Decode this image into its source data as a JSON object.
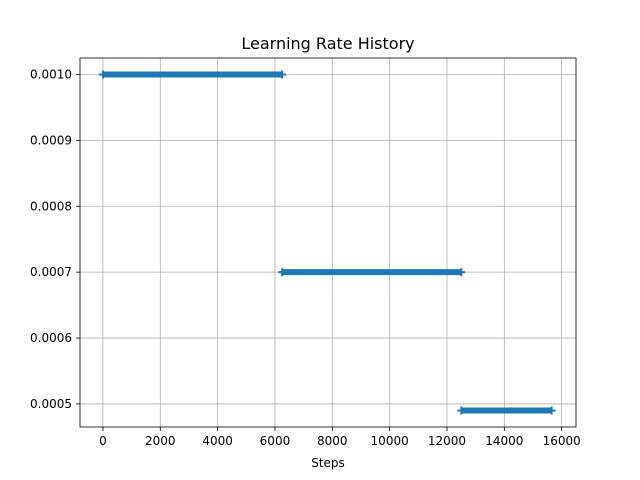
{
  "chart_data": {
    "type": "scatter",
    "title": "Learning Rate History",
    "xlabel": "Steps",
    "ylabel": "",
    "grid": true,
    "legend": "none",
    "color": "#1f77b4",
    "marker": "plus",
    "xlim": [
      -800,
      16500
    ],
    "ylim": [
      0.000465,
      0.001025
    ],
    "xticks": [
      0,
      2000,
      4000,
      6000,
      8000,
      10000,
      12000,
      14000,
      16000
    ],
    "xtick_labels": [
      "0",
      "2000",
      "4000",
      "6000",
      "8000",
      "10000",
      "12000",
      "14000",
      "16000"
    ],
    "yticks": [
      0.0005,
      0.0006,
      0.0007,
      0.0008,
      0.0009,
      0.001
    ],
    "ytick_labels": [
      "0.0005",
      "0.0006",
      "0.0007",
      "0.0008",
      "0.0009",
      "0.0010"
    ],
    "series": [
      {
        "segments": [
          {
            "x_start": 0,
            "x_end": 6250,
            "y": 0.001
          },
          {
            "x_start": 6250,
            "x_end": 12500,
            "y": 0.0007
          },
          {
            "x_start": 12500,
            "x_end": 15650,
            "y": 0.00049
          }
        ]
      }
    ]
  }
}
